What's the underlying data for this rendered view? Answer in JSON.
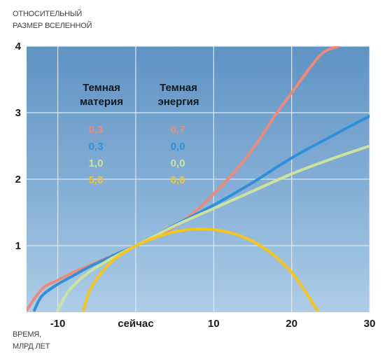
{
  "chart_data": {
    "type": "line",
    "ylabel_lines": [
      "ОТНОСИТЕЛЬНЫЙ",
      "РАЗМЕР ВСЕЛЕННОЙ"
    ],
    "xlabel_lines": [
      "ВРЕМЯ,",
      "МЛРД ЛЕТ"
    ],
    "xlim": [
      -14,
      30
    ],
    "ylim": [
      0,
      4
    ],
    "grid": true,
    "x_ticks": [
      {
        "value": -10,
        "label": "-10"
      },
      {
        "value": 0,
        "label": "сейчас"
      },
      {
        "value": 10,
        "label": "10"
      },
      {
        "value": 20,
        "label": "20"
      },
      {
        "value": 30,
        "label": "30"
      }
    ],
    "y_ticks": [
      {
        "value": 1,
        "label": "1"
      },
      {
        "value": 2,
        "label": "2"
      },
      {
        "value": 3,
        "label": "3"
      },
      {
        "value": 4,
        "label": "4"
      }
    ],
    "legend": {
      "headers": [
        [
          "Темная",
          "материя"
        ],
        [
          "Темная",
          "энергия"
        ]
      ],
      "rows": [
        {
          "matter": "0,3",
          "energy": "0,7",
          "color": "#ee8a78"
        },
        {
          "matter": "0,3",
          "energy": "0,0",
          "color": "#2f8fd9"
        },
        {
          "matter": "1,0",
          "energy": "0,0",
          "color": "#cce3a0"
        },
        {
          "matter": "5,0",
          "energy": "0,0",
          "color": "#f5c51c"
        }
      ]
    },
    "series": [
      {
        "color": "#ee8a78",
        "x": [
          -14,
          -12,
          -10,
          -8,
          -6,
          -4,
          -2,
          0,
          2,
          4,
          6,
          8,
          10,
          12,
          14,
          16,
          18,
          20,
          22,
          24,
          26
        ],
        "y": [
          0.03,
          0.35,
          0.48,
          0.6,
          0.7,
          0.8,
          0.9,
          1.0,
          1.1,
          1.22,
          1.37,
          1.55,
          1.78,
          2.02,
          2.3,
          2.62,
          2.98,
          3.3,
          3.62,
          3.9,
          4.0
        ]
      },
      {
        "color": "#2f8fd9",
        "x": [
          -13,
          -12,
          -10,
          -8,
          -6,
          -4,
          -2,
          0,
          5,
          10,
          15,
          20,
          25,
          30
        ],
        "y": [
          0.03,
          0.25,
          0.42,
          0.55,
          0.68,
          0.79,
          0.9,
          1.0,
          1.31,
          1.61,
          1.95,
          2.32,
          2.64,
          2.95
        ]
      },
      {
        "color": "#cce3a0",
        "x": [
          -10,
          -9,
          -8,
          -6,
          -4,
          -2,
          0,
          5,
          10,
          15,
          20,
          25,
          30
        ],
        "y": [
          0.03,
          0.25,
          0.4,
          0.6,
          0.75,
          0.88,
          1.0,
          1.3,
          1.56,
          1.82,
          2.08,
          2.3,
          2.5
        ]
      },
      {
        "color": "#f5c51c",
        "x": [
          -6.7,
          -6,
          -5,
          -4,
          -3,
          -2,
          -1,
          0,
          2,
          4,
          6,
          8,
          10,
          12,
          14,
          16,
          18,
          20,
          21,
          22,
          23,
          23.3
        ],
        "y": [
          0.03,
          0.3,
          0.5,
          0.65,
          0.77,
          0.86,
          0.93,
          1.0,
          1.1,
          1.18,
          1.23,
          1.25,
          1.24,
          1.2,
          1.12,
          1.0,
          0.83,
          0.6,
          0.44,
          0.27,
          0.08,
          0.03
        ]
      }
    ]
  }
}
